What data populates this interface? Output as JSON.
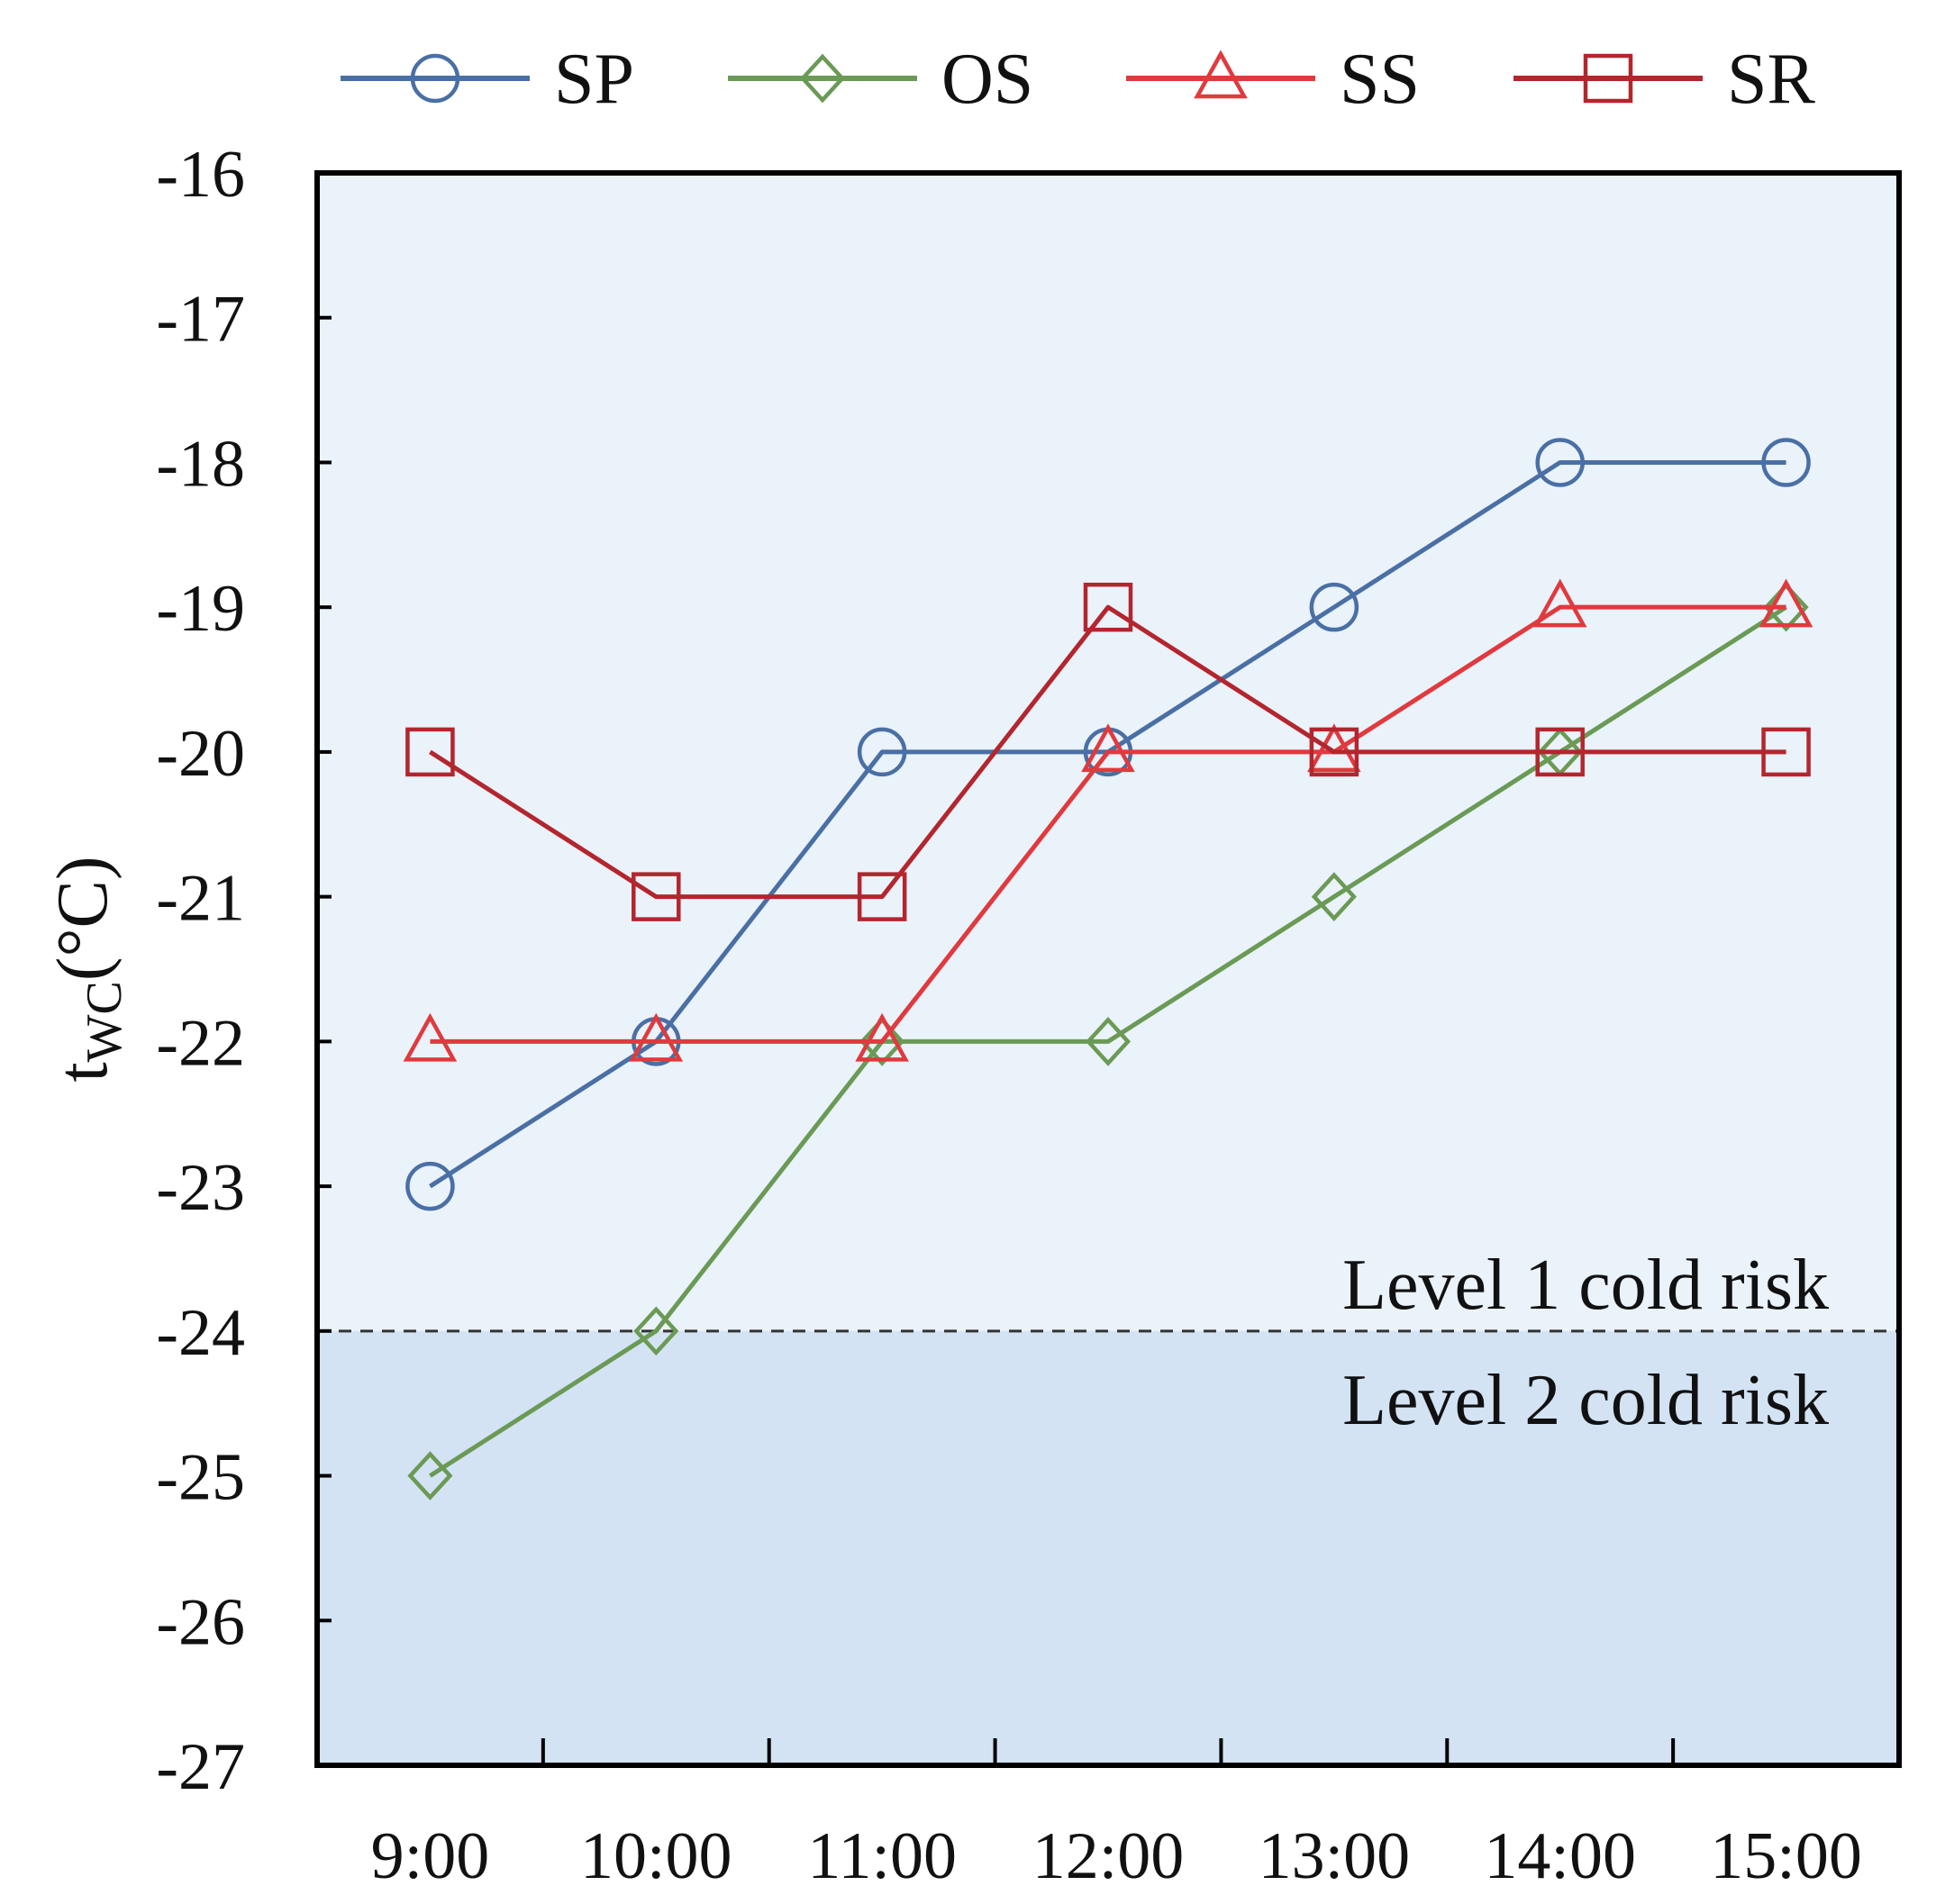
{
  "chart_data": {
    "type": "line",
    "categories": [
      "9:00",
      "10:00",
      "11:00",
      "12:00",
      "13:00",
      "14:00",
      "15:00"
    ],
    "series": [
      {
        "name": "SP",
        "marker": "circle",
        "color": "#4a6fa5",
        "values": [
          -23,
          -22,
          -20,
          -20,
          -19,
          -18,
          -18
        ]
      },
      {
        "name": "OS",
        "marker": "diamond",
        "color": "#6a9a55",
        "values": [
          -25,
          -24,
          -22,
          -22,
          -21,
          -20,
          -19
        ]
      },
      {
        "name": "SS",
        "marker": "triangle",
        "color": "#e03a3e",
        "values": [
          -22,
          -22,
          -22,
          -20,
          -20,
          -19,
          -19
        ]
      },
      {
        "name": "SR",
        "marker": "square",
        "color": "#b3262e",
        "values": [
          -20,
          -21,
          -21,
          -19,
          -20,
          -20,
          -20
        ]
      }
    ],
    "ylim": [
      -27,
      -16
    ],
    "yticks": [
      -16,
      -17,
      -18,
      -19,
      -20,
      -21,
      -22,
      -23,
      -24,
      -25,
      -26,
      -27
    ],
    "ylabel_main": "t",
    "ylabel_sub": "WC",
    "ylabel_unit": "(°C)",
    "xlabel": "",
    "legend_position": "top",
    "threshold": {
      "value": -24,
      "label_above": "Level 1 cold risk",
      "label_below": "Level 2 cold risk"
    },
    "background": {
      "upper_color": "#eaf2fa",
      "lower_color": "#d3e3f3"
    }
  }
}
